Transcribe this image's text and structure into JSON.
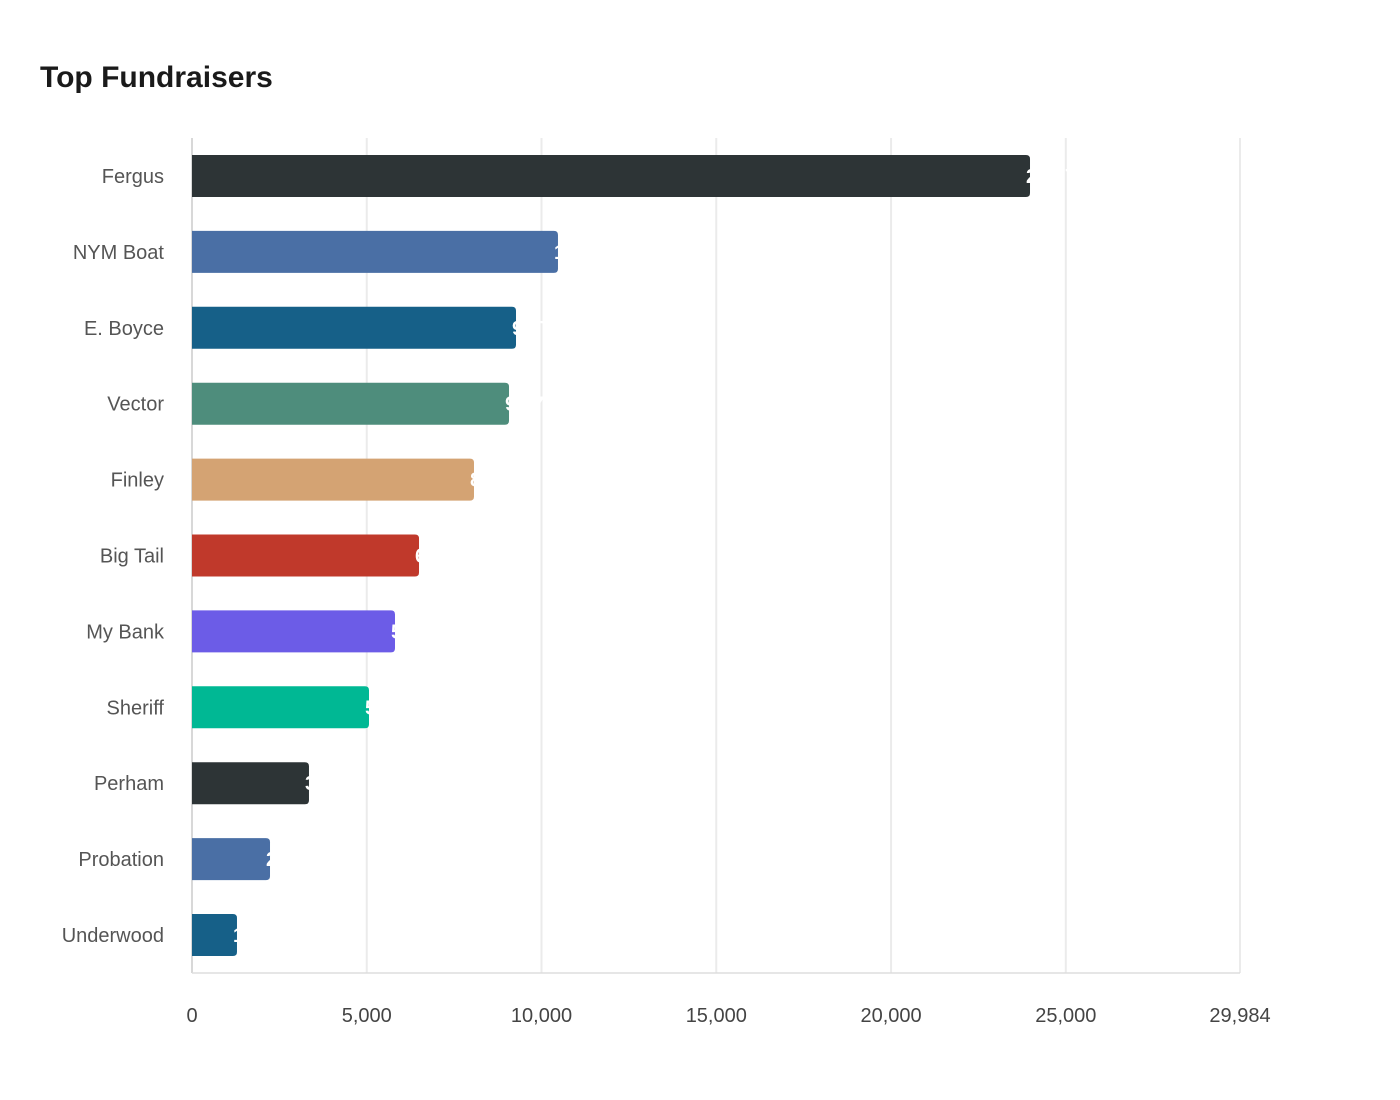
{
  "chart_data": {
    "type": "bar",
    "orientation": "horizontal",
    "title": "Top Fundraisers",
    "xlabel": "",
    "ylabel": "",
    "categories": [
      "Fergus",
      "NYM Boat",
      "E. Boyce",
      "Vector",
      "Finley",
      "Big Tail",
      "My Bank",
      "Sheriff",
      "Perham",
      "Probation",
      "Underwood"
    ],
    "values": [
      23976,
      10471,
      9270,
      9070,
      8068,
      6495,
      5808,
      5064,
      3347,
      2232,
      1287
    ],
    "xlim": [
      0,
      29984
    ],
    "xticks": [
      0,
      5000,
      10000,
      15000,
      20000,
      25000,
      29984
    ],
    "xtick_labels": [
      "0",
      "5,000",
      "10,000",
      "15,000",
      "20,000",
      "25,000",
      "29,984"
    ],
    "grid": "vertical",
    "legend": "none",
    "data_labels": "white, at bar end",
    "colors": [
      "#2d3436",
      "#4a6fa5",
      "#166088",
      "#4e8d7c",
      "#d4a373",
      "#c0392b",
      "#6c5ce7",
      "#00b894",
      "#2d3436",
      "#4a6fa5",
      "#166088"
    ]
  }
}
